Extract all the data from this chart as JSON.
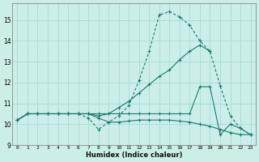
{
  "bg_color": "#cceee8",
  "grid_color": "#aaddda",
  "line_color": "#1a7a6e",
  "xlabel": "Humidex (Indice chaleur)",
  "xlim": [
    -0.5,
    23.5
  ],
  "ylim": [
    9.0,
    15.8
  ],
  "yticks": [
    9,
    10,
    11,
    12,
    13,
    14,
    15
  ],
  "xticks": [
    0,
    1,
    2,
    3,
    4,
    5,
    6,
    7,
    8,
    9,
    10,
    11,
    12,
    13,
    14,
    15,
    16,
    17,
    18,
    19,
    20,
    21,
    22,
    23
  ],
  "s1_x": [
    0,
    1,
    2,
    3,
    4,
    5,
    6,
    7,
    8,
    9,
    10,
    11,
    12,
    13,
    14,
    15,
    16,
    17,
    18,
    19,
    20,
    21,
    22,
    23
  ],
  "s1_y": [
    10.2,
    10.5,
    10.5,
    10.5,
    10.5,
    10.5,
    10.5,
    10.3,
    9.75,
    10.1,
    10.4,
    10.9,
    12.1,
    13.5,
    15.25,
    15.4,
    15.15,
    14.75,
    14.0,
    13.5,
    11.85,
    10.4,
    9.8,
    9.5
  ],
  "s2_x": [
    0,
    1,
    2,
    3,
    4,
    5,
    6,
    7,
    8,
    9,
    10,
    11,
    12,
    13,
    14,
    15,
    16,
    17,
    18,
    19
  ],
  "s2_y": [
    10.2,
    10.5,
    10.5,
    10.5,
    10.5,
    10.5,
    10.5,
    10.5,
    10.4,
    10.5,
    10.8,
    11.1,
    11.5,
    11.9,
    12.3,
    12.6,
    13.1,
    13.5,
    13.8,
    13.5
  ],
  "s3_x": [
    0,
    1,
    2,
    3,
    4,
    5,
    6,
    7,
    8,
    9,
    10,
    11,
    12,
    13,
    14,
    15,
    16,
    17,
    18,
    19,
    20,
    21,
    22,
    23
  ],
  "s3_y": [
    10.2,
    10.5,
    10.5,
    10.5,
    10.5,
    10.5,
    10.5,
    10.5,
    10.5,
    10.5,
    10.5,
    10.5,
    10.5,
    10.5,
    10.5,
    10.5,
    10.5,
    10.5,
    11.8,
    11.8,
    9.5,
    10.0,
    9.8,
    9.5
  ],
  "s4_x": [
    0,
    1,
    2,
    3,
    4,
    5,
    6,
    7,
    8,
    9,
    10,
    11,
    12,
    13,
    14,
    15,
    16,
    17,
    18,
    19,
    20,
    21,
    22,
    23
  ],
  "s4_y": [
    10.2,
    10.5,
    10.5,
    10.5,
    10.5,
    10.5,
    10.5,
    10.5,
    10.3,
    10.1,
    10.1,
    10.15,
    10.2,
    10.2,
    10.2,
    10.2,
    10.15,
    10.1,
    10.0,
    9.9,
    9.75,
    9.6,
    9.5,
    9.5
  ]
}
